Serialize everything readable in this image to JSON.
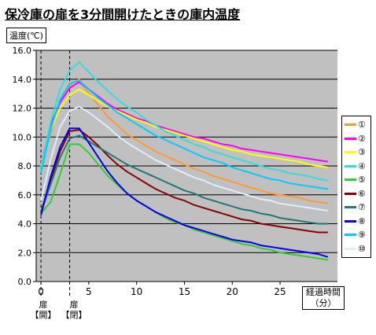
{
  "chart_data": {
    "type": "line",
    "title": "保冷庫の扉を3分間開けたときの庫内温度",
    "ylabel": "温度(℃)",
    "xlabel": "経過時間（分）",
    "xlim": [
      -0.5,
      31
    ],
    "ylim": [
      0,
      16
    ],
    "x_ticks": [
      {
        "value": 0,
        "label": "0"
      },
      {
        "value": 5,
        "label": "5"
      },
      {
        "value": 10,
        "label": "10"
      },
      {
        "value": 15,
        "label": "15"
      },
      {
        "value": 20,
        "label": "20"
      },
      {
        "value": 25,
        "label": "25"
      }
    ],
    "y_ticks": [
      {
        "value": 0,
        "label": "0.0"
      },
      {
        "value": 2,
        "label": "2.0"
      },
      {
        "value": 4,
        "label": "4.0"
      },
      {
        "value": 6,
        "label": "6.0"
      },
      {
        "value": 8,
        "label": "8.0"
      },
      {
        "value": 10,
        "label": "10.0"
      },
      {
        "value": 12,
        "label": "12.0"
      },
      {
        "value": 14,
        "label": "14.0"
      },
      {
        "value": 16,
        "label": "16.0"
      }
    ],
    "door_events": [
      {
        "x": 0,
        "label_top": "扉",
        "label_bottom": "【開】"
      },
      {
        "x": 3,
        "label_top": "扉",
        "label_bottom": "【閉】"
      }
    ],
    "grid": true,
    "legend_position": "right",
    "x": [
      0,
      1,
      2,
      3,
      4,
      5,
      6,
      7,
      8,
      9,
      10,
      11,
      12,
      13,
      14,
      15,
      16,
      17,
      18,
      19,
      20,
      21,
      22,
      23,
      24,
      25,
      26,
      27,
      28,
      29,
      30
    ],
    "series": [
      {
        "name": "①",
        "color": "#ff9933",
        "values": [
          8.0,
          10.2,
          12.6,
          13.6,
          14.0,
          13.0,
          12.2,
          11.4,
          10.8,
          10.2,
          9.8,
          9.4,
          9.0,
          8.7,
          8.4,
          8.1,
          7.8,
          7.6,
          7.3,
          7.1,
          6.9,
          6.7,
          6.5,
          6.3,
          6.1,
          6.0,
          5.9,
          5.8,
          5.6,
          5.5,
          5.4
        ]
      },
      {
        "name": "②",
        "color": "#ff00ff",
        "values": [
          8.0,
          10.8,
          12.4,
          13.4,
          13.8,
          13.3,
          12.8,
          12.3,
          11.9,
          11.6,
          11.3,
          11.1,
          10.8,
          10.6,
          10.4,
          10.2,
          10.0,
          9.9,
          9.7,
          9.5,
          9.4,
          9.2,
          9.1,
          9.0,
          8.9,
          8.8,
          8.7,
          8.6,
          8.5,
          8.4,
          8.3
        ]
      },
      {
        "name": "③",
        "color": "#ffff00",
        "values": [
          8.0,
          10.5,
          12.0,
          12.9,
          13.3,
          12.9,
          12.5,
          12.1,
          11.8,
          11.5,
          11.2,
          11.0,
          10.7,
          10.5,
          10.3,
          10.1,
          9.9,
          9.7,
          9.5,
          9.3,
          9.1,
          9.0,
          8.8,
          8.7,
          8.6,
          8.5,
          8.4,
          8.3,
          8.1,
          8.0,
          7.9
        ]
      },
      {
        "name": "④",
        "color": "#33dddd",
        "values": [
          7.8,
          11.0,
          13.3,
          14.6,
          15.2,
          14.5,
          13.8,
          13.2,
          12.6,
          12.1,
          11.7,
          11.2,
          10.8,
          10.4,
          10.1,
          9.8,
          9.5,
          9.3,
          9.0,
          8.8,
          8.6,
          8.4,
          8.2,
          8.0,
          7.8,
          7.7,
          7.5,
          7.4,
          7.3,
          7.1,
          7.0
        ]
      },
      {
        "name": "⑤",
        "color": "#33cc33",
        "values": [
          4.7,
          5.5,
          7.4,
          9.5,
          9.5,
          8.9,
          8.1,
          7.3,
          6.7,
          6.1,
          5.6,
          5.2,
          4.8,
          4.4,
          4.1,
          3.9,
          3.6,
          3.4,
          3.2,
          3.0,
          2.8,
          2.6,
          2.5,
          2.3,
          2.2,
          2.0,
          1.9,
          1.8,
          1.7,
          1.6,
          1.5
        ]
      },
      {
        "name": "⑥",
        "color": "#880000",
        "values": [
          4.8,
          7.0,
          9.0,
          10.4,
          10.5,
          10.0,
          9.4,
          8.7,
          8.1,
          7.6,
          7.2,
          6.8,
          6.4,
          6.1,
          5.8,
          5.6,
          5.3,
          5.1,
          4.9,
          4.7,
          4.5,
          4.3,
          4.2,
          4.0,
          3.9,
          3.8,
          3.7,
          3.6,
          3.5,
          3.4,
          3.4
        ]
      },
      {
        "name": "⑦",
        "color": "#227777",
        "values": [
          4.8,
          6.7,
          8.6,
          9.9,
          10.1,
          9.7,
          9.3,
          8.9,
          8.5,
          8.1,
          7.8,
          7.5,
          7.2,
          6.9,
          6.6,
          6.3,
          6.1,
          5.8,
          5.6,
          5.4,
          5.2,
          5.0,
          4.9,
          4.7,
          4.6,
          4.4,
          4.3,
          4.2,
          4.1,
          4.0,
          4.0
        ]
      },
      {
        "name": "⑧",
        "color": "#0000ee",
        "values": [
          4.6,
          7.2,
          9.3,
          10.6,
          10.6,
          9.6,
          8.6,
          7.6,
          6.8,
          6.1,
          5.6,
          5.2,
          4.8,
          4.5,
          4.2,
          3.9,
          3.7,
          3.5,
          3.3,
          3.1,
          2.9,
          2.8,
          2.7,
          2.5,
          2.4,
          2.3,
          2.2,
          2.1,
          2.0,
          1.9,
          1.7
        ]
      },
      {
        "name": "⑨",
        "color": "#00ccff",
        "values": [
          7.5,
          10.5,
          12.6,
          13.7,
          13.9,
          13.3,
          12.7,
          12.2,
          11.7,
          11.3,
          10.9,
          10.5,
          10.1,
          9.8,
          9.5,
          9.2,
          8.9,
          8.6,
          8.4,
          8.2,
          7.9,
          7.7,
          7.5,
          7.3,
          7.1,
          7.0,
          6.8,
          6.7,
          6.6,
          6.5,
          6.4
        ]
      },
      {
        "name": "⑩",
        "color": "#ddeeff",
        "values": [
          5.6,
          8.4,
          10.7,
          11.8,
          12.1,
          11.7,
          11.2,
          10.7,
          10.1,
          9.6,
          9.2,
          8.8,
          8.4,
          8.1,
          7.8,
          7.5,
          7.2,
          7.0,
          6.7,
          6.5,
          6.3,
          6.1,
          5.9,
          5.7,
          5.6,
          5.4,
          5.3,
          5.2,
          5.1,
          5.0,
          4.9
        ]
      }
    ]
  }
}
